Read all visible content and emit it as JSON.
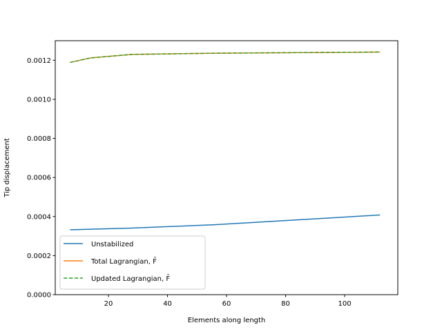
{
  "chart_data": {
    "type": "line",
    "title": "",
    "xlabel": "Elements along length",
    "ylabel": "Tip displacement",
    "xlim": [
      2,
      118
    ],
    "ylim": [
      0,
      0.0013
    ],
    "xticks": [
      20,
      40,
      60,
      80,
      100
    ],
    "yticks": [
      0.0,
      0.0002,
      0.0004,
      0.0006,
      0.0008,
      0.001,
      0.0012
    ],
    "ytick_labels": [
      "0.0000",
      "0.0002",
      "0.0004",
      "0.0006",
      "0.0008",
      "0.0010",
      "0.0012"
    ],
    "grid": false,
    "legend_placement": "lower-left",
    "series": [
      {
        "name": "Unstabilized",
        "color": "#1f77b4",
        "dash": "solid",
        "x": [
          7,
          14,
          28,
          56,
          112
        ],
        "y": [
          0.000332,
          0.000335,
          0.000341,
          0.000358,
          0.000408
        ]
      },
      {
        "name": "Total Lagrangian, F̄",
        "color": "#ff7f0e",
        "dash": "solid",
        "x": [
          7,
          14,
          28,
          56,
          112
        ],
        "y": [
          0.001189,
          0.001212,
          0.00123,
          0.001236,
          0.001242
        ]
      },
      {
        "name": "Updated Lagrangian, F̄",
        "color": "#2ca02c",
        "dash": "dashed",
        "x": [
          7,
          14,
          28,
          56,
          112
        ],
        "y": [
          0.001189,
          0.001212,
          0.00123,
          0.001236,
          0.001242
        ]
      }
    ]
  }
}
